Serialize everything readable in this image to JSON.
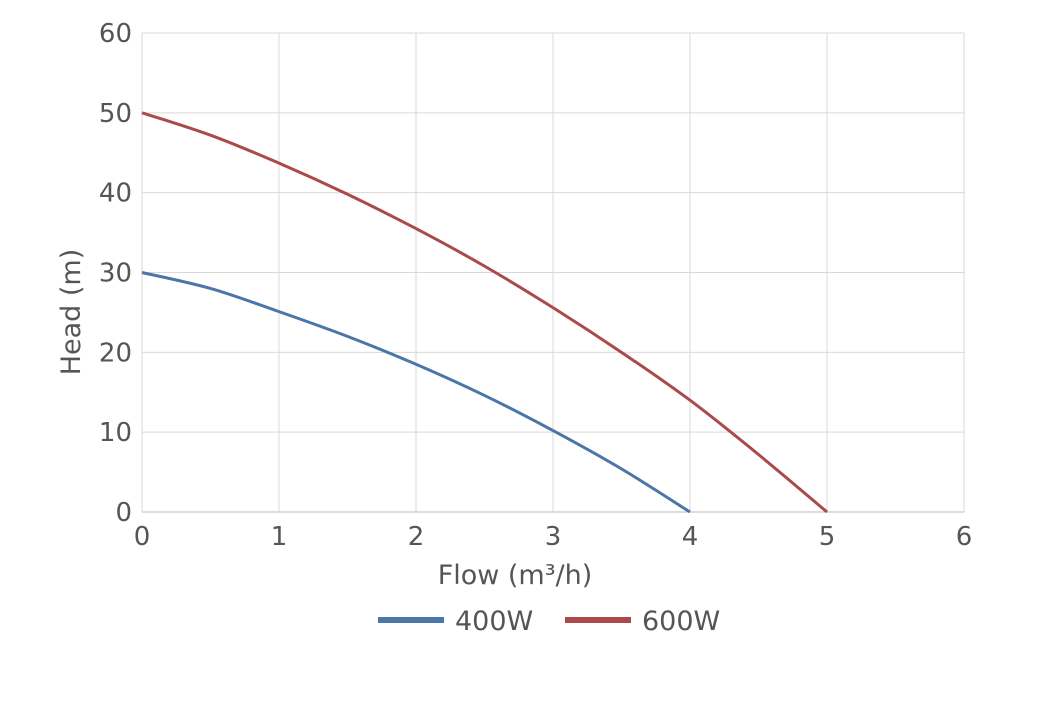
{
  "chart_data": {
    "type": "line",
    "title": "",
    "xlabel": "Flow (m³/h)",
    "ylabel": "Head (m)",
    "xlim": [
      0,
      6
    ],
    "ylim": [
      0,
      60
    ],
    "xticks": [
      "0",
      "1",
      "2",
      "3",
      "4",
      "5",
      "6"
    ],
    "yticks": [
      "0",
      "10",
      "20",
      "30",
      "40",
      "50",
      "60"
    ],
    "grid": true,
    "legend_position": "bottom",
    "series": [
      {
        "name": "400W",
        "color": "#4a76a8",
        "x": [
          0,
          0.5,
          1,
          1.5,
          2,
          2.5,
          3,
          3.5,
          4
        ],
        "y": [
          30,
          28,
          25.1,
          22,
          18.5,
          14.6,
          10.2,
          5.4,
          0
        ]
      },
      {
        "name": "600W",
        "color": "#ab4a4a",
        "x": [
          0,
          0.5,
          1,
          1.5,
          2,
          2.5,
          3,
          3.5,
          4,
          4.5,
          5
        ],
        "y": [
          50,
          47.2,
          43.7,
          39.8,
          35.5,
          30.8,
          25.6,
          20,
          14,
          7.2,
          0
        ]
      }
    ]
  }
}
